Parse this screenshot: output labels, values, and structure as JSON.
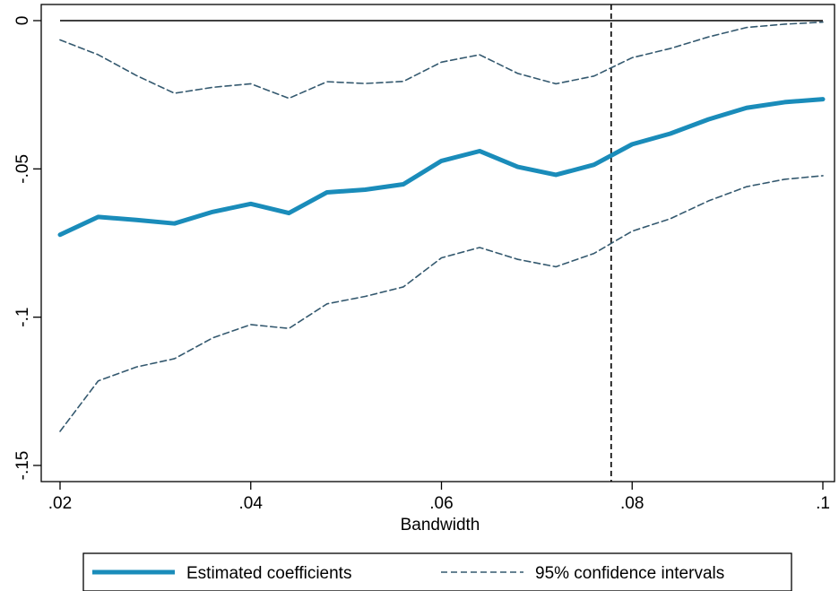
{
  "chart_data": {
    "type": "line",
    "title": "",
    "xlabel": "Bandwidth",
    "ylabel": "",
    "xlim": [
      0.02,
      0.1
    ],
    "ylim": [
      -0.15,
      0
    ],
    "x_ticks": [
      0.02,
      0.04,
      0.06,
      0.08,
      0.1
    ],
    "x_tick_labels": [
      ".02",
      ".04",
      ".06",
      ".08",
      ".1"
    ],
    "y_ticks": [
      0,
      -0.05,
      -0.1,
      -0.15
    ],
    "y_tick_labels": [
      "0",
      "-.05",
      "-.1",
      "-.15"
    ],
    "grid": false,
    "legend_position": "bottom",
    "reference_lines": {
      "horizontal_y": 0,
      "vertical_x": 0.0778
    },
    "x": [
      0.02,
      0.024,
      0.028,
      0.032,
      0.036,
      0.04,
      0.044,
      0.048,
      0.052,
      0.056,
      0.06,
      0.064,
      0.068,
      0.072,
      0.076,
      0.08,
      0.084,
      0.088,
      0.092,
      0.096,
      0.1
    ],
    "series": [
      {
        "name": "Estimated coefficients",
        "style": "solid",
        "color": "#1a8cba",
        "values": [
          -0.0722,
          -0.0662,
          -0.0672,
          -0.0684,
          -0.0645,
          -0.0618,
          -0.0649,
          -0.0579,
          -0.057,
          -0.0552,
          -0.0473,
          -0.044,
          -0.0493,
          -0.052,
          -0.0486,
          -0.0417,
          -0.0381,
          -0.0333,
          -0.0294,
          -0.0275,
          -0.0265
        ]
      },
      {
        "name": "95% confidence intervals",
        "style": "dashed",
        "color": "#34596f",
        "values": [
          -0.0065,
          -0.0115,
          -0.0185,
          -0.0245,
          -0.0225,
          -0.0213,
          -0.0262,
          -0.0206,
          -0.0212,
          -0.0205,
          -0.014,
          -0.0115,
          -0.0178,
          -0.0213,
          -0.0187,
          -0.0125,
          -0.0094,
          -0.0055,
          -0.0023,
          -0.0012,
          -0.0005
        ]
      },
      {
        "style": "dashed",
        "color": "#34596f",
        "values": [
          -0.1385,
          -0.1215,
          -0.1168,
          -0.114,
          -0.107,
          -0.1025,
          -0.1038,
          -0.0955,
          -0.093,
          -0.0898,
          -0.08,
          -0.0765,
          -0.0805,
          -0.083,
          -0.0785,
          -0.071,
          -0.0668,
          -0.0608,
          -0.056,
          -0.0535,
          -0.0523
        ]
      }
    ]
  },
  "legend": {
    "items": [
      {
        "label": "Estimated coefficients"
      },
      {
        "label": "95% confidence intervals"
      }
    ]
  }
}
